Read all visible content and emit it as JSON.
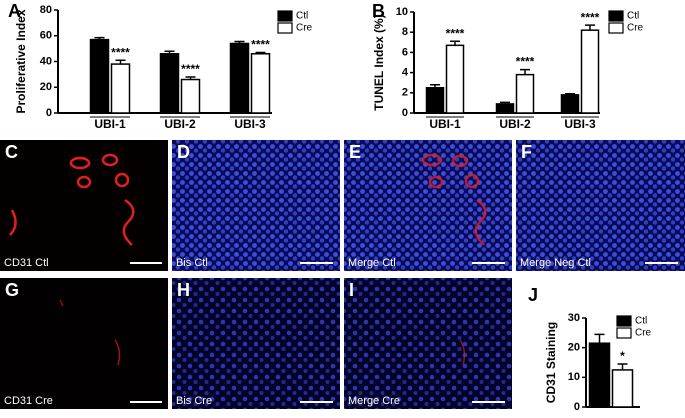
{
  "chart_data": [
    {
      "type": "bar",
      "label": "A",
      "ylabel": "Proliferative Index",
      "categories": [
        "UBI-1",
        "UBI-2",
        "UBI-3"
      ],
      "series": [
        {
          "name": "Ctl",
          "color": "#000000",
          "values": [
            57,
            46,
            54
          ],
          "errors": [
            1.5,
            2,
            1.5
          ]
        },
        {
          "name": "Cre",
          "color": "#ffffff",
          "values": [
            38,
            26,
            46
          ],
          "errors": [
            3,
            2,
            1
          ],
          "annotations": [
            "****",
            "****",
            "****"
          ]
        }
      ],
      "ylim": [
        0,
        80
      ],
      "yticks": [
        0,
        20,
        40,
        60,
        80
      ]
    },
    {
      "type": "bar",
      "label": "B",
      "ylabel": "TUNEL Index (%)",
      "categories": [
        "UBI-1",
        "UBI-2",
        "UBI-3"
      ],
      "series": [
        {
          "name": "Ctl",
          "color": "#000000",
          "values": [
            2.5,
            0.9,
            1.8
          ],
          "errors": [
            0.3,
            0.15,
            0.1
          ]
        },
        {
          "name": "Cre",
          "color": "#ffffff",
          "values": [
            6.7,
            3.8,
            8.2
          ],
          "errors": [
            0.4,
            0.5,
            0.5
          ],
          "annotations": [
            "****",
            "****",
            "****"
          ]
        }
      ],
      "ylim": [
        0,
        10
      ],
      "yticks": [
        0,
        2,
        4,
        6,
        8,
        10
      ]
    },
    {
      "type": "bar",
      "label": "J",
      "ylabel": "CD31 Staining",
      "categories": [
        null
      ],
      "series": [
        {
          "name": "Ctl",
          "color": "#000000",
          "values": [
            21.5
          ],
          "errors": [
            3
          ]
        },
        {
          "name": "Cre",
          "color": "#ffffff",
          "values": [
            12.5
          ],
          "errors": [
            2
          ],
          "annotations": [
            "*"
          ]
        }
      ],
      "ylim": [
        0,
        30
      ],
      "yticks": [
        0,
        10,
        20,
        30
      ]
    }
  ],
  "panels": [
    {
      "label": "C",
      "caption": "CD31 Ctl"
    },
    {
      "label": "D",
      "caption": "Bis Ctl"
    },
    {
      "label": "E",
      "caption": "Merge Ctl"
    },
    {
      "label": "F",
      "caption": "Merge Neg Ctl"
    },
    {
      "label": "G",
      "caption": "CD31 Cre"
    },
    {
      "label": "H",
      "caption": "Bis Cre"
    },
    {
      "label": "I",
      "caption": "Merge Cre"
    }
  ]
}
